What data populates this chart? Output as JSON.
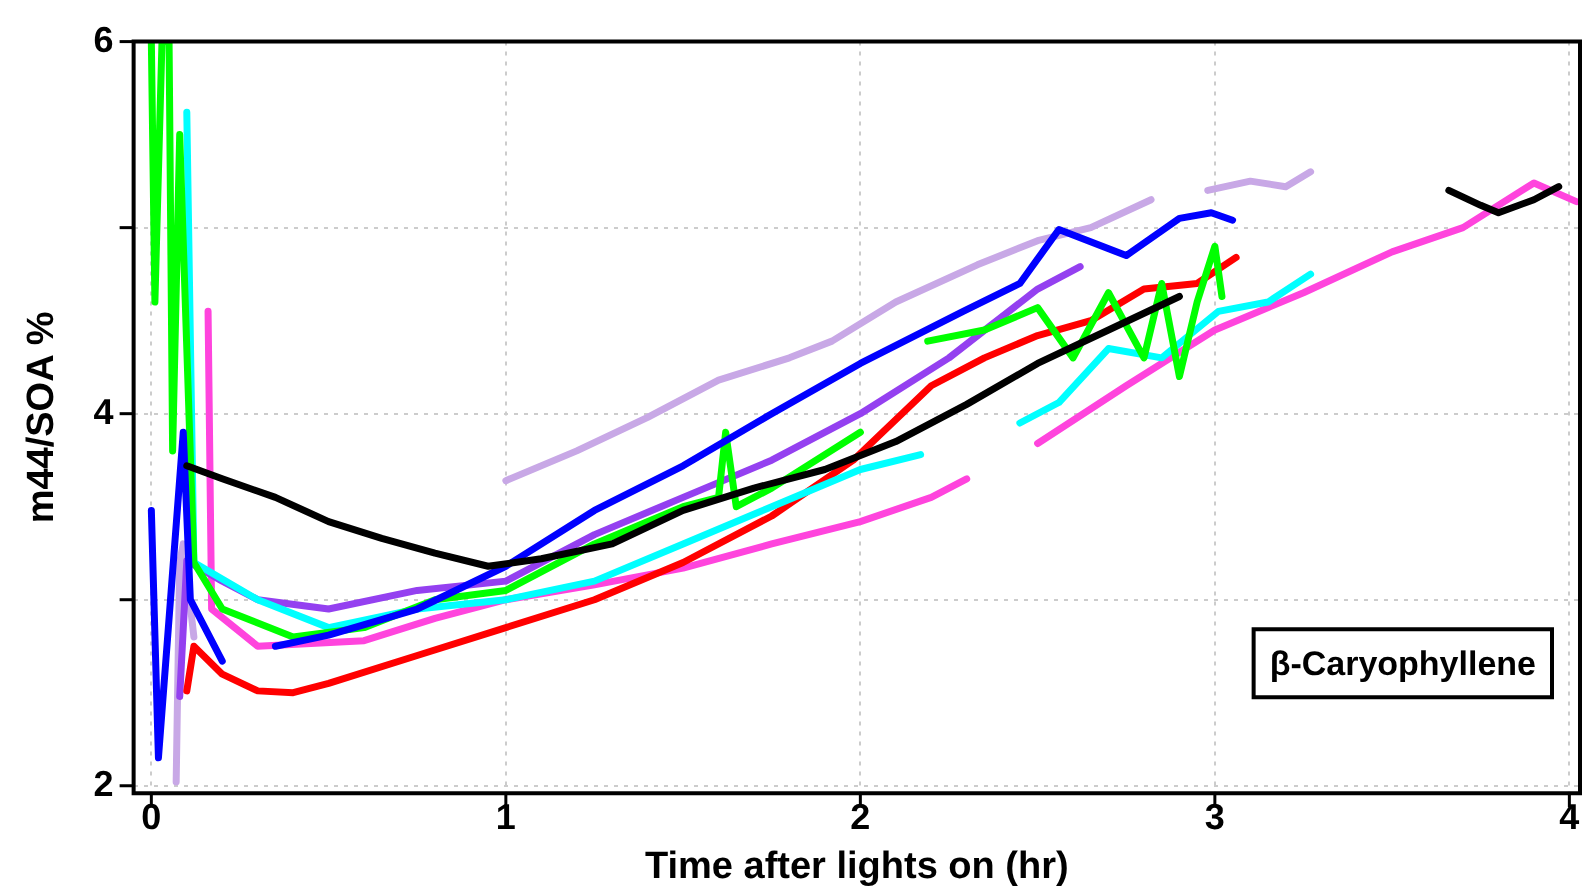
{
  "chart_data": {
    "type": "line",
    "xlabel": "Time after lights on (hr)",
    "ylabel": "m44/SOA %",
    "annotations": [
      "β-Caryophyllene"
    ],
    "xlim": [
      -0.05,
      4.03
    ],
    "ylim": [
      1.96,
      6
    ],
    "xticks": [
      0,
      1,
      2,
      3,
      4
    ],
    "yticks": [
      2,
      {
        "value": 3,
        "label": null
      },
      4,
      {
        "value": 5,
        "label": null
      },
      6
    ],
    "grid": true,
    "legend": false,
    "line_style": "solid",
    "marker": "none",
    "series": [
      {
        "color": "#000000",
        "x": [
          0.1,
          0.2,
          0.35,
          0.5,
          0.65,
          0.8,
          0.95,
          1.1,
          1.3,
          1.5,
          1.7,
          1.9,
          2.1,
          2.3,
          2.5,
          2.7,
          2.9,
          3.0,
          3.66,
          3.75,
          3.8,
          3.9,
          3.97
        ],
        "values": [
          3.72,
          3.65,
          3.55,
          3.42,
          3.33,
          3.25,
          3.18,
          3.22,
          3.3,
          3.48,
          3.6,
          3.7,
          3.85,
          4.05,
          4.27,
          4.45,
          4.63,
          null,
          5.2,
          5.12,
          5.08,
          5.15,
          5.22
        ]
      },
      {
        "color": "#0000ff",
        "x": [
          0.0,
          0.02,
          0.09,
          0.11,
          0.2,
          0.3,
          0.35,
          0.5,
          0.75,
          1.0,
          1.25,
          1.5,
          1.75,
          2.0,
          2.29,
          2.45,
          2.56,
          2.75,
          2.9,
          2.99,
          3.05
        ],
        "values": [
          3.48,
          2.15,
          3.9,
          3.0,
          2.67,
          null,
          2.75,
          2.81,
          2.95,
          3.18,
          3.48,
          3.72,
          4.0,
          4.27,
          4.55,
          4.7,
          4.99,
          4.85,
          5.05,
          5.08,
          5.04
        ]
      },
      {
        "color": "#00ff00",
        "x": [
          0.0,
          0.01,
          0.03,
          0.05,
          0.06,
          0.08,
          0.12,
          0.2,
          0.4,
          0.6,
          0.8,
          1.0,
          1.25,
          1.5,
          1.6,
          1.62,
          1.65,
          1.75,
          2.0,
          2.1,
          2.19,
          2.35,
          2.5,
          2.6,
          2.7,
          2.8,
          2.85,
          2.9,
          2.95,
          3.0,
          3.02
        ],
        "values": [
          6.0,
          4.6,
          6.0,
          6.0,
          3.8,
          5.5,
          3.2,
          2.95,
          2.8,
          2.85,
          3.0,
          3.05,
          3.3,
          3.5,
          3.55,
          3.9,
          3.5,
          3.6,
          3.9,
          null,
          4.39,
          4.45,
          4.57,
          4.3,
          4.65,
          4.3,
          4.7,
          4.2,
          4.6,
          4.9,
          4.63
        ]
      },
      {
        "color": "#00ffff",
        "x": [
          0.1,
          0.12,
          0.3,
          0.5,
          0.75,
          1.0,
          1.25,
          1.5,
          1.75,
          2.0,
          2.17,
          2.3,
          2.45,
          2.56,
          2.7,
          2.85,
          3.01,
          3.15,
          3.27
        ],
        "values": [
          5.62,
          3.2,
          3.0,
          2.85,
          2.95,
          3.0,
          3.1,
          3.3,
          3.5,
          3.7,
          3.78,
          null,
          3.95,
          4.06,
          4.35,
          4.3,
          4.55,
          4.6,
          4.75
        ]
      },
      {
        "color": "#ff0000",
        "x": [
          0.1,
          0.12,
          0.2,
          0.3,
          0.4,
          0.5,
          0.75,
          1.0,
          1.25,
          1.5,
          1.75,
          1.98,
          2.2,
          2.35,
          2.5,
          2.65,
          2.8,
          2.95,
          3.06
        ],
        "values": [
          2.51,
          2.75,
          2.6,
          2.51,
          2.5,
          2.55,
          2.7,
          2.85,
          3.0,
          3.2,
          3.45,
          3.75,
          4.15,
          4.3,
          4.42,
          4.5,
          4.67,
          4.7,
          4.84
        ]
      },
      {
        "color": "#9440f0",
        "x": [
          0.08,
          0.1,
          0.2,
          0.3,
          0.5,
          0.75,
          1.0,
          1.25,
          1.5,
          1.75,
          2.0,
          2.25,
          2.5,
          2.62
        ],
        "values": [
          2.48,
          3.21,
          3.1,
          3.0,
          2.95,
          3.05,
          3.1,
          3.35,
          3.55,
          3.75,
          4.0,
          4.3,
          4.67,
          4.79
        ]
      },
      {
        "color": "#c8a8e6",
        "x": [
          0.07,
          0.08,
          0.09,
          0.12,
          0.5,
          1.0,
          1.2,
          1.4,
          1.6,
          1.8,
          1.92,
          2.1,
          2.33,
          2.5,
          2.65,
          2.82,
          2.9,
          2.98,
          3.1,
          3.2,
          3.27
        ],
        "values": [
          2.02,
          3.2,
          3.3,
          2.8,
          null,
          3.64,
          3.8,
          3.98,
          4.18,
          4.3,
          4.39,
          4.6,
          4.8,
          4.93,
          5.0,
          5.15,
          null,
          5.2,
          5.25,
          5.22,
          5.3
        ]
      },
      {
        "color": "#ff44dd",
        "x": [
          0.16,
          0.17,
          0.3,
          0.6,
          0.8,
          1.0,
          1.25,
          1.5,
          1.75,
          2.0,
          2.2,
          2.3,
          2.4,
          2.5,
          2.75,
          3.0,
          3.25,
          3.5,
          3.7,
          3.9,
          4.02
        ],
        "values": [
          4.55,
          2.95,
          2.75,
          2.78,
          2.9,
          3.0,
          3.08,
          3.17,
          3.3,
          3.42,
          3.55,
          3.65,
          null,
          3.84,
          4.15,
          4.45,
          4.65,
          4.87,
          5.0,
          5.24,
          5.14
        ]
      }
    ]
  }
}
